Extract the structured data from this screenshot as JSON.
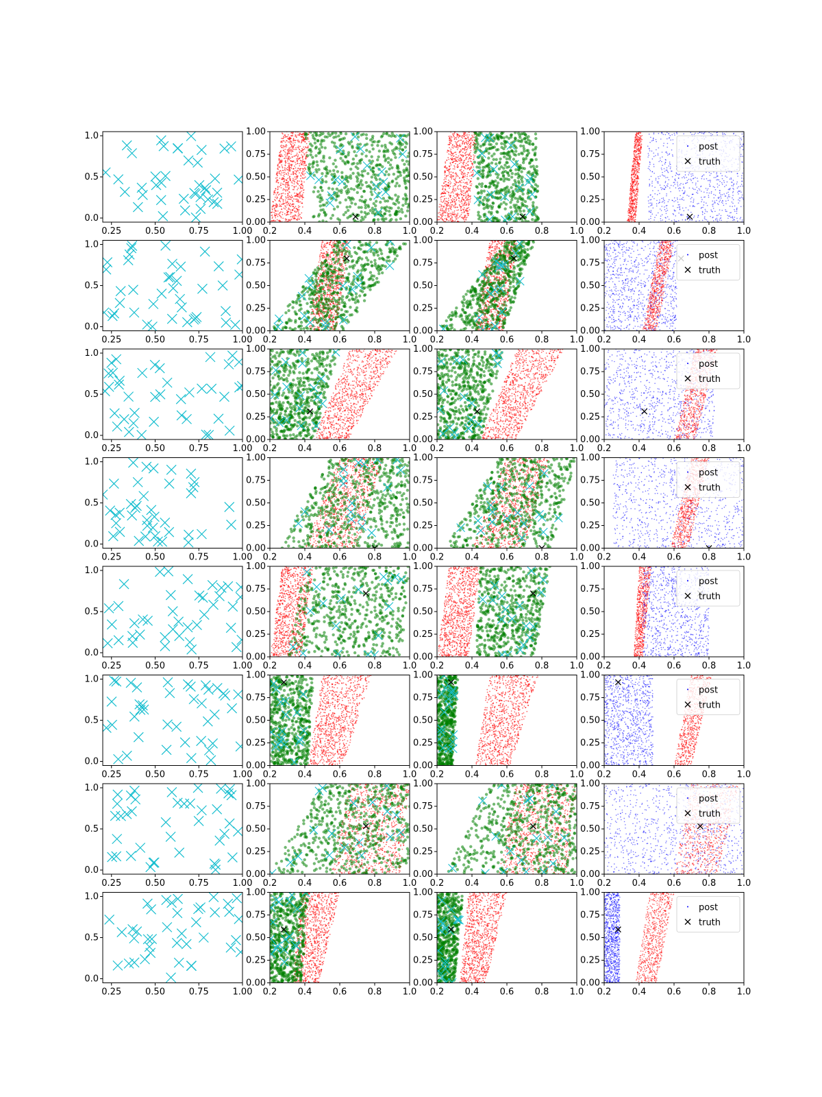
{
  "figure": {
    "rows": 8,
    "legend": {
      "entries": [
        "post",
        "truth"
      ],
      "placement": "top-right",
      "panel_column": 4
    }
  },
  "colors": {
    "design": "#17becf",
    "samples_red": "#ff0000",
    "samples_green": "#008000",
    "post_blue": "#0000ff",
    "truth": "#000000",
    "axes": "#000000"
  },
  "chart_data": [
    {
      "type": "scatter",
      "column": 1,
      "description_series": [
        "design"
      ],
      "xlim": [
        0.2,
        1.0
      ],
      "ylim": [
        -0.05,
        1.05
      ],
      "xticks": [
        "0.25",
        "0.50",
        "0.75",
        "1.00"
      ],
      "yticks": [
        "0.0",
        "0.5",
        "1.0"
      ],
      "series": [
        {
          "marker": "x",
          "color": "#17becf",
          "points": "random-uniform-design",
          "count": 40
        }
      ]
    },
    {
      "type": "scatter",
      "column": 2,
      "xlim": [
        0.2,
        1.0
      ],
      "ylim": [
        0.0,
        1.0
      ],
      "xticks": [
        "0.2",
        "0.4",
        "0.6",
        "0.8",
        "1.0"
      ],
      "yticks": [
        "0.00",
        "0.25",
        "0.50",
        "0.75",
        "1.00"
      ],
      "series": [
        {
          "marker": "dot",
          "color": "#ff0000"
        },
        {
          "marker": "circle",
          "color": "#008000"
        },
        {
          "marker": "x",
          "color": "#17becf"
        },
        {
          "marker": "x",
          "color": "#000000",
          "name": "truth"
        }
      ]
    },
    {
      "type": "scatter",
      "column": 3,
      "xlim": [
        0.2,
        1.0
      ],
      "ylim": [
        0.0,
        1.0
      ],
      "xticks": [
        "0.2",
        "0.4",
        "0.6",
        "0.8",
        "1.0"
      ],
      "yticks": [
        "0.00",
        "0.25",
        "0.50",
        "0.75",
        "1.00"
      ],
      "series": [
        {
          "marker": "dot",
          "color": "#ff0000"
        },
        {
          "marker": "circle",
          "color": "#008000"
        },
        {
          "marker": "x",
          "color": "#17becf"
        },
        {
          "marker": "x",
          "color": "#000000"
        }
      ]
    },
    {
      "type": "scatter",
      "column": 4,
      "xlim": [
        0.2,
        1.0
      ],
      "ylim": [
        0.0,
        1.0
      ],
      "xticks": [
        "0.2",
        "0.4",
        "0.6",
        "0.8",
        "1.0"
      ],
      "yticks": [
        "0.00",
        "0.25",
        "0.50",
        "0.75",
        "1.00"
      ],
      "series": [
        {
          "marker": "dot",
          "color": "#ff0000"
        },
        {
          "marker": "dot",
          "color": "#0000ff",
          "name": "post"
        },
        {
          "marker": "x",
          "color": "#000000",
          "name": "truth"
        }
      ]
    }
  ],
  "rows_data": [
    {
      "truth": [
        0.69,
        0.06
      ],
      "red_band": [
        0.2,
        0.38,
        0.27,
        0.43
      ],
      "green_band": [
        0.45,
        1.0,
        0.4,
        1.0
      ],
      "green3_band": [
        0.44,
        0.78,
        0.4,
        0.77
      ],
      "blue": {
        "xmin": 0.45,
        "xmax": 1.0
      },
      "red4_band": [
        0.33,
        0.38,
        0.38,
        0.42
      ],
      "blue_behind": false
    },
    {
      "truth": [
        0.64,
        0.8
      ],
      "red_band": [
        0.42,
        0.58,
        0.5,
        0.66
      ],
      "green_band": [
        0.2,
        0.62,
        0.58,
        1.0
      ],
      "green3_band": [
        0.2,
        0.58,
        0.6,
        0.76
      ],
      "blue": {
        "xmin": 0.2,
        "xmax": 0.62
      },
      "red4_band": [
        0.42,
        0.5,
        0.52,
        0.6
      ],
      "blue_behind": true
    },
    {
      "truth": [
        0.43,
        0.31
      ],
      "red_band": [
        0.45,
        0.65,
        0.66,
        0.93
      ],
      "green_band": [
        0.2,
        0.45,
        0.2,
        0.6
      ],
      "green3_band": [
        0.2,
        0.45,
        0.2,
        0.58
      ],
      "blue": {
        "xmin": 0.2,
        "xmax": 0.83
      },
      "red4_band": [
        0.6,
        0.72,
        0.72,
        0.85
      ],
      "blue_behind": true
    },
    {
      "truth": [
        0.8,
        0.0
      ],
      "red_band": [
        0.4,
        0.7,
        0.6,
        0.85
      ],
      "green_band": [
        0.25,
        1.0,
        0.55,
        1.0
      ],
      "green3_band": [
        0.25,
        0.85,
        0.55,
        1.0
      ],
      "blue": {
        "xmin": 0.25,
        "xmax": 1.0
      },
      "red4_band": [
        0.58,
        0.68,
        0.7,
        0.8
      ],
      "blue_behind": true
    },
    {
      "truth": [
        0.75,
        0.7
      ],
      "red_band": [
        0.2,
        0.38,
        0.27,
        0.45
      ],
      "green_band": [
        0.3,
        0.95,
        0.4,
        1.0
      ],
      "green3_band": [
        0.42,
        0.76,
        0.45,
        0.85
      ],
      "blue": {
        "xmin": 0.42,
        "xmax": 0.8
      },
      "red4_band": [
        0.37,
        0.42,
        0.4,
        0.47
      ],
      "blue_behind": false
    },
    {
      "truth": [
        0.28,
        0.92
      ],
      "red_band": [
        0.42,
        0.62,
        0.5,
        0.78
      ],
      "green_band": [
        0.2,
        0.42,
        0.2,
        0.45
      ],
      "green3_band": [
        0.2,
        0.29,
        0.2,
        0.32
      ],
      "blue": {
        "xmin": 0.2,
        "xmax": 0.48
      },
      "red4_band": [
        0.6,
        0.7,
        0.7,
        0.82
      ],
      "blue_behind": false
    },
    {
      "truth": [
        0.75,
        0.53
      ],
      "red_band": [
        0.55,
        0.95,
        0.65,
        1.0
      ],
      "green_band": [
        0.2,
        1.0,
        0.5,
        1.0
      ],
      "green3_band": [
        0.25,
        1.0,
        0.5,
        1.0
      ],
      "blue": {
        "xmin": 0.2,
        "xmax": 1.0
      },
      "red4_band": [
        0.6,
        0.85,
        0.7,
        0.98
      ],
      "blue_behind": true
    },
    {
      "truth": [
        0.28,
        0.59
      ],
      "red_band": [
        0.33,
        0.48,
        0.38,
        0.6
      ],
      "green_band": [
        0.2,
        0.38,
        0.2,
        0.42
      ],
      "green3_band": [
        0.2,
        0.3,
        0.2,
        0.35
      ],
      "blue": {
        "xmin": 0.2,
        "xmax": 0.29
      },
      "red4_band": [
        0.38,
        0.5,
        0.46,
        0.6
      ],
      "blue_behind": false
    }
  ]
}
